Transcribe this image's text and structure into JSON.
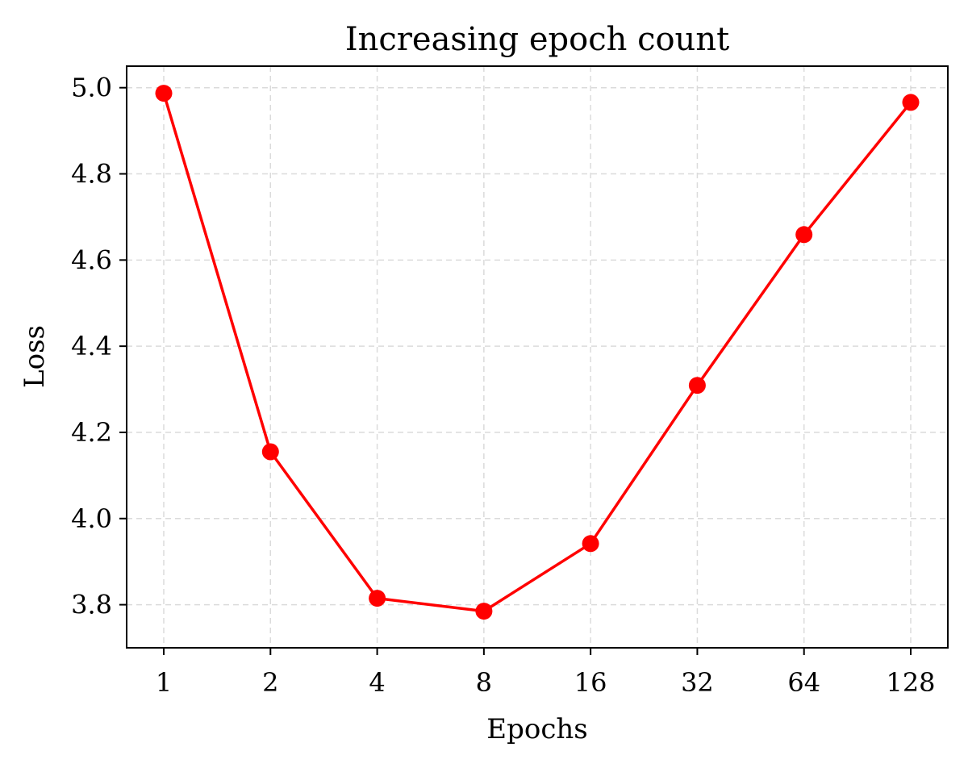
{
  "chart_data": {
    "type": "line",
    "title": "Increasing epoch count",
    "xlabel": "Epochs",
    "ylabel": "Loss",
    "x_axis": {
      "scale": "log2",
      "ticks": [
        "1",
        "2",
        "4",
        "8",
        "16",
        "32",
        "64",
        "128"
      ]
    },
    "y_axis": {
      "range": [
        3.7,
        5.05
      ],
      "ticks": [
        "3.8",
        "4.0",
        "4.2",
        "4.4",
        "4.6",
        "4.8",
        "5.0"
      ]
    },
    "grid": true,
    "series": [
      {
        "color": "#ff0000",
        "marker": "circle",
        "x": [
          1,
          2,
          4,
          8,
          16,
          32,
          64,
          128
        ],
        "values": [
          4.987,
          4.155,
          3.815,
          3.785,
          3.942,
          4.309,
          4.659,
          4.966
        ]
      }
    ]
  }
}
